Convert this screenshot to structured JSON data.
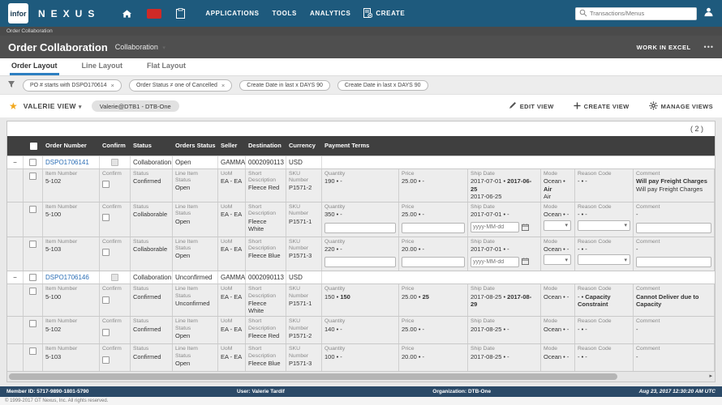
{
  "ui": {
    "caret": "▾",
    "collapse_glyph": "−",
    "scroll_right": "▸",
    "star": "★",
    "close_glyph": "×"
  },
  "topbar": {
    "logo": "infor",
    "brand": "NEXUS",
    "menu": [
      "APPLICATIONS",
      "TOOLS",
      "ANALYTICS",
      "CREATE"
    ],
    "search_placeholder": "Transactions/Menus"
  },
  "breadcrumb": {
    "label": "Order Collaboration"
  },
  "header": {
    "title": "Order Collaboration",
    "view_selector": "Collaboration",
    "work_in_excel": "WORK IN EXCEL",
    "more": "•••"
  },
  "tabs": [
    {
      "label": "Order Layout",
      "active": true
    },
    {
      "label": "Line Layout",
      "active": false
    },
    {
      "label": "Flat Layout",
      "active": false
    }
  ],
  "filters": {
    "chips": [
      {
        "label": "PO # starts with DSPO170614"
      },
      {
        "label": "Order Status ≠ one of Cancelled"
      },
      {
        "label": "Create Date in last x DAYS 90"
      },
      {
        "label": "Create Date in last x DAYS 90"
      }
    ]
  },
  "viewbar": {
    "view_name": "VALERIE VIEW",
    "view_chip": "Valerie@DTB1 - DTB-One",
    "actions": [
      {
        "label": "EDIT VIEW"
      },
      {
        "label": "CREATE VIEW"
      },
      {
        "label": "MANAGE VIEWS"
      }
    ]
  },
  "table": {
    "count": "( 2 )",
    "headers": [
      "Order Number",
      "Confirm",
      "Status",
      "Orders Status",
      "Seller",
      "Destination",
      "Currency",
      "Payment Terms"
    ],
    "date_placeholder": "yyyy-MM-dd",
    "line_labels": {
      "item": "Item Number",
      "confirm": "Confirm",
      "status": "Status",
      "line_status": "Line Item Status",
      "uom": "UoM",
      "desc": "Short Description",
      "sku": "SKU Number",
      "qty": "Quantity",
      "price": "Price",
      "ship": "Ship Date",
      "mode": "Mode",
      "reason": "Reason Code",
      "comment": "Comment"
    },
    "orders": [
      {
        "number": "DSPO1706141",
        "status": "Collaboration",
        "order_status": "Open",
        "seller": "GAMMA",
        "destination": "0002090113",
        "currency": "USD",
        "lines": [
          {
            "item": "5-102",
            "status": "Confirmed",
            "line_status": "Open",
            "uom": "EA - EA",
            "desc": "Fleece Red",
            "sku": "P1571-2",
            "qty": "190 • -",
            "price": "25.00 • -",
            "ship": [
              {
                "t": "2017-07-01 • "
              },
              {
                "t": "2017-06-25",
                "bold": true
              }
            ],
            "ship2": "2017-06-25",
            "mode": [
              {
                "t": "Ocean • "
              },
              {
                "t": "Air",
                "bold": true
              }
            ],
            "mode2": "Air",
            "reason": "- • -",
            "comment": [
              {
                "t": "Will pay Freight Charges",
                "bold": true
              }
            ],
            "comment2": "Will pay Freight Charges",
            "editable": false
          },
          {
            "item": "5-100",
            "status": "Collaborable",
            "line_status": "Open",
            "uom": "EA - EA",
            "desc": "Fleece White",
            "sku": "P1571-1",
            "qty": "350 • -",
            "price": "25.00 • -",
            "ship": "2017-07-01 • -",
            "mode": "Ocean • -",
            "reason": "- • -",
            "comment": "-",
            "editable": true
          },
          {
            "item": "5-103",
            "status": "Collaborable",
            "line_status": "Open",
            "uom": "EA - EA",
            "desc": "Fleece Blue",
            "sku": "P1571-3",
            "qty": "220 • -",
            "price": "20.00 • -",
            "ship": "2017-07-01 • -",
            "mode": "Ocean • -",
            "reason": "- • -",
            "comment": "-",
            "editable": true
          }
        ]
      },
      {
        "number": "DSPO1706146",
        "status": "Collaboration",
        "order_status": "Unconfirmed",
        "seller": "GAMMA",
        "destination": "0002090113",
        "currency": "USD",
        "lines": [
          {
            "item": "5-100",
            "status": "Confirmed",
            "line_status": "Unconfirmed",
            "uom": "EA - EA",
            "desc": "Fleece White",
            "sku": "P1571-1",
            "qty": [
              {
                "t": "150 • "
              },
              {
                "t": "150",
                "bold": true
              }
            ],
            "price": [
              {
                "t": "25.00 • "
              },
              {
                "t": "25",
                "bold": true
              }
            ],
            "ship": [
              {
                "t": "2017-08-25 • "
              },
              {
                "t": "2017-08-29",
                "bold": true
              }
            ],
            "mode": "Ocean • -",
            "reason": [
              {
                "t": "- • "
              },
              {
                "t": "Capacity Constraint",
                "bold": true
              }
            ],
            "comment": [
              {
                "t": "Cannot Deliver due to Capacity",
                "bold": true
              }
            ],
            "editable": false
          },
          {
            "item": "5-102",
            "status": "Confirmed",
            "line_status": "Open",
            "uom": "EA - EA",
            "desc": "Fleece Red",
            "sku": "P1571-2",
            "qty": "140 • -",
            "price": "25.00 • -",
            "ship": "2017-08-25 • -",
            "mode": "Ocean • -",
            "reason": "- • -",
            "comment": "-",
            "editable": false
          },
          {
            "item": "5-103",
            "status": "Confirmed",
            "line_status": "Open",
            "uom": "EA - EA",
            "desc": "Fleece Blue",
            "sku": "P1571-3",
            "qty": "100 • -",
            "price": "20.00 • -",
            "ship": "2017-08-25 • -",
            "mode": "Ocean • -",
            "reason": "- • -",
            "comment": "-",
            "editable": false
          }
        ]
      }
    ]
  },
  "footer": {
    "member_id": "Member ID: 5717-9890-1801-5790",
    "user": "User: Valerie Tardif",
    "organization": "Organization: DTB-One",
    "timestamp": "Aug 23, 2017 12:30:20 AM UTC",
    "copyright": "© 1999-2017 GT Nexus, Inc. All rights reserved."
  }
}
